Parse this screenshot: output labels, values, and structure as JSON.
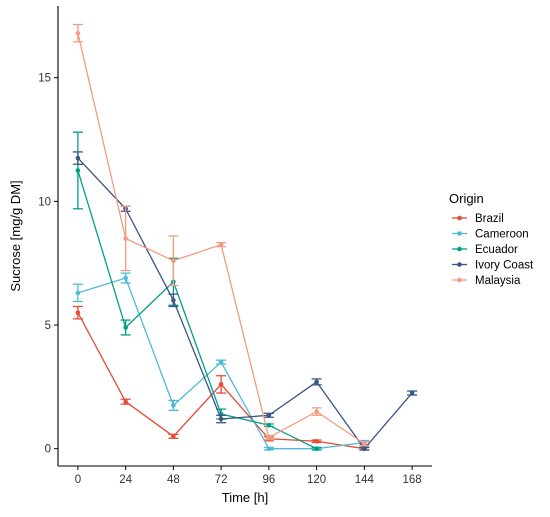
{
  "chart_data": {
    "type": "line",
    "xlabel": "Time [h]",
    "ylabel": "Sucrose [mg/g DM]",
    "xlim": [
      -10,
      178
    ],
    "ylim": [
      -0.7,
      17.9
    ],
    "x_ticks": [
      0,
      24,
      48,
      72,
      96,
      120,
      144,
      168
    ],
    "x_tick_labels": [
      "0",
      "24",
      "48",
      "72",
      "96",
      "120",
      "144",
      "168"
    ],
    "y_ticks": [
      0,
      5,
      10,
      15
    ],
    "y_tick_labels": [
      "0",
      "5",
      "10",
      "15"
    ],
    "grid": false,
    "legend": {
      "title": "Origin",
      "position": "right"
    },
    "series": [
      {
        "name": "Brazil",
        "color": "#E64B35",
        "x": [
          0,
          24,
          48,
          72,
          96,
          120,
          144
        ],
        "y": [
          5.5,
          1.9,
          0.5,
          2.6,
          0.4,
          0.3,
          0.0
        ],
        "err": [
          0.25,
          0.1,
          0.08,
          0.35,
          0.08,
          0.05,
          0.05
        ]
      },
      {
        "name": "Cameroon",
        "color": "#4DBBD5",
        "x": [
          0,
          24,
          48,
          72,
          96,
          120,
          144
        ],
        "y": [
          6.3,
          6.9,
          1.75,
          3.5,
          0.0,
          0.0,
          0.25
        ],
        "err": [
          0.35,
          0.2,
          0.2,
          0.08,
          0.05,
          0.05,
          0.08
        ]
      },
      {
        "name": "Ecuador",
        "color": "#00A087",
        "x": [
          0,
          24,
          48,
          72,
          96,
          120
        ],
        "y": [
          11.25,
          4.9,
          6.75,
          1.4,
          0.95,
          0.0
        ],
        "err": [
          1.55,
          0.3,
          0.95,
          0.2,
          0.05,
          0.05
        ]
      },
      {
        "name": "Ivory Coast",
        "color": "#3C5488",
        "x": [
          0,
          24,
          48,
          72,
          96,
          120,
          144,
          168
        ],
        "y": [
          11.75,
          9.7,
          6.0,
          1.2,
          1.35,
          2.7,
          0.0,
          2.25
        ],
        "err": [
          0.25,
          0.1,
          0.25,
          0.15,
          0.08,
          0.12,
          0.05,
          0.08
        ]
      },
      {
        "name": "Malaysia",
        "color": "#F39B7F",
        "x": [
          0,
          24,
          48,
          72,
          96,
          120,
          144
        ],
        "y": [
          16.8,
          8.5,
          7.6,
          8.25,
          0.45,
          1.5,
          0.2
        ],
        "err": [
          0.35,
          1.3,
          1.0,
          0.08,
          0.08,
          0.15,
          0.08
        ]
      }
    ]
  }
}
